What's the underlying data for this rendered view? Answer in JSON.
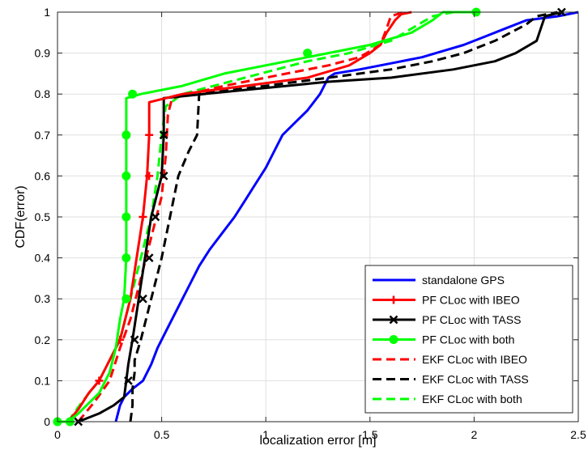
{
  "chart_data": {
    "type": "line",
    "title": "",
    "xlabel": "localization error [m]",
    "ylabel": "CDF(error)",
    "xlim": [
      0,
      2.5
    ],
    "ylim": [
      0,
      1
    ],
    "xticks": [
      "0",
      "0.5",
      "1",
      "1.5",
      "2",
      "2.5"
    ],
    "yticks": [
      "0",
      "0.1",
      "0.2",
      "0.3",
      "0.4",
      "0.5",
      "0.6",
      "0.7",
      "0.8",
      "0.9",
      "1"
    ],
    "grid": true,
    "legend_position": "bottom-right",
    "series": [
      {
        "name": "standalone GPS",
        "color": "#0000ff",
        "dash": "solid",
        "marker": "none",
        "points": [
          [
            0.28,
            0
          ],
          [
            0.29,
            0.02
          ],
          [
            0.3,
            0.04
          ],
          [
            0.32,
            0.06
          ],
          [
            0.36,
            0.08
          ],
          [
            0.41,
            0.1
          ],
          [
            0.45,
            0.14
          ],
          [
            0.48,
            0.18
          ],
          [
            0.52,
            0.22
          ],
          [
            0.56,
            0.26
          ],
          [
            0.6,
            0.3
          ],
          [
            0.64,
            0.34
          ],
          [
            0.68,
            0.38
          ],
          [
            0.73,
            0.42
          ],
          [
            0.79,
            0.46
          ],
          [
            0.85,
            0.5
          ],
          [
            0.9,
            0.54
          ],
          [
            0.95,
            0.58
          ],
          [
            1.0,
            0.62
          ],
          [
            1.04,
            0.66
          ],
          [
            1.08,
            0.7
          ],
          [
            1.14,
            0.73
          ],
          [
            1.2,
            0.76
          ],
          [
            1.26,
            0.8
          ],
          [
            1.3,
            0.84
          ],
          [
            1.33,
            0.85
          ],
          [
            1.45,
            0.86
          ],
          [
            1.6,
            0.875
          ],
          [
            1.75,
            0.89
          ],
          [
            1.85,
            0.905
          ],
          [
            1.95,
            0.92
          ],
          [
            2.05,
            0.94
          ],
          [
            2.15,
            0.96
          ],
          [
            2.25,
            0.98
          ],
          [
            2.4,
            0.99
          ],
          [
            2.5,
            1.0
          ]
        ]
      },
      {
        "name": "PF CLoc with IBEO",
        "color": "#ff0000",
        "dash": "solid",
        "marker": "plus",
        "points": [
          [
            0.05,
            0
          ],
          [
            0.1,
            0.03
          ],
          [
            0.15,
            0.07
          ],
          [
            0.2,
            0.1
          ],
          [
            0.25,
            0.15
          ],
          [
            0.3,
            0.2
          ],
          [
            0.35,
            0.3
          ],
          [
            0.38,
            0.4
          ],
          [
            0.41,
            0.5
          ],
          [
            0.43,
            0.6
          ],
          [
            0.44,
            0.7
          ],
          [
            0.44,
            0.78
          ],
          [
            0.6,
            0.8
          ],
          [
            0.9,
            0.82
          ],
          [
            1.2,
            0.84
          ],
          [
            1.4,
            0.87
          ],
          [
            1.5,
            0.9
          ],
          [
            1.55,
            0.92
          ],
          [
            1.58,
            0.95
          ],
          [
            1.62,
            0.98
          ],
          [
            1.65,
            0.995
          ],
          [
            1.7,
            1.0
          ]
        ],
        "marker_points": [
          [
            0.2,
            0.1
          ],
          [
            0.3,
            0.2
          ],
          [
            0.41,
            0.5
          ],
          [
            0.44,
            0.6
          ],
          [
            0.44,
            0.7
          ]
        ]
      },
      {
        "name": "PF CLoc with TASS",
        "color": "#000000",
        "dash": "solid",
        "marker": "x",
        "points": [
          [
            0.1,
            0
          ],
          [
            0.2,
            0.02
          ],
          [
            0.27,
            0.04
          ],
          [
            0.32,
            0.06
          ],
          [
            0.33,
            0.1
          ],
          [
            0.34,
            0.14
          ],
          [
            0.36,
            0.2
          ],
          [
            0.39,
            0.3
          ],
          [
            0.42,
            0.4
          ],
          [
            0.45,
            0.5
          ],
          [
            0.5,
            0.6
          ],
          [
            0.51,
            0.7
          ],
          [
            0.51,
            0.79
          ],
          [
            0.7,
            0.8
          ],
          [
            1.1,
            0.82
          ],
          [
            1.3,
            0.83
          ],
          [
            1.6,
            0.84
          ],
          [
            1.9,
            0.86
          ],
          [
            2.1,
            0.88
          ],
          [
            2.2,
            0.9
          ],
          [
            2.3,
            0.93
          ],
          [
            2.32,
            0.96
          ],
          [
            2.34,
            0.99
          ],
          [
            2.42,
            1.0
          ]
        ],
        "marker_points": [
          [
            0.1,
            0
          ],
          [
            0.34,
            0.1
          ],
          [
            0.37,
            0.2
          ],
          [
            0.41,
            0.3
          ],
          [
            0.44,
            0.4
          ],
          [
            0.47,
            0.5
          ],
          [
            0.51,
            0.6
          ],
          [
            0.51,
            0.7
          ],
          [
            2.42,
            1.0
          ]
        ]
      },
      {
        "name": "PF CLoc with both",
        "color": "#00ff00",
        "dash": "solid",
        "marker": "circle",
        "points": [
          [
            0,
            0
          ],
          [
            0.05,
            0
          ],
          [
            0.1,
            0.02
          ],
          [
            0.2,
            0.07
          ],
          [
            0.25,
            0.12
          ],
          [
            0.28,
            0.18
          ],
          [
            0.3,
            0.25
          ],
          [
            0.32,
            0.3
          ],
          [
            0.33,
            0.4
          ],
          [
            0.33,
            0.5
          ],
          [
            0.33,
            0.6
          ],
          [
            0.33,
            0.7
          ],
          [
            0.33,
            0.79
          ],
          [
            0.4,
            0.8
          ],
          [
            0.6,
            0.82
          ],
          [
            0.8,
            0.85
          ],
          [
            1.2,
            0.89
          ],
          [
            1.5,
            0.92
          ],
          [
            1.7,
            0.95
          ],
          [
            1.8,
            0.98
          ],
          [
            1.85,
            1.0
          ],
          [
            2.01,
            1.0
          ]
        ],
        "marker_points": [
          [
            0,
            0
          ],
          [
            0.06,
            0
          ],
          [
            0.33,
            0.3
          ],
          [
            0.33,
            0.4
          ],
          [
            0.33,
            0.5
          ],
          [
            0.33,
            0.6
          ],
          [
            0.33,
            0.7
          ],
          [
            0.36,
            0.8
          ],
          [
            1.2,
            0.9
          ],
          [
            2.01,
            1.0
          ]
        ]
      },
      {
        "name": "EKF CLoc with IBEO",
        "color": "#ff0000",
        "dash": "dashed",
        "marker": "none",
        "points": [
          [
            0.1,
            0
          ],
          [
            0.18,
            0.05
          ],
          [
            0.25,
            0.1
          ],
          [
            0.3,
            0.18
          ],
          [
            0.35,
            0.25
          ],
          [
            0.4,
            0.35
          ],
          [
            0.45,
            0.45
          ],
          [
            0.5,
            0.55
          ],
          [
            0.52,
            0.65
          ],
          [
            0.53,
            0.75
          ],
          [
            0.55,
            0.79
          ],
          [
            0.8,
            0.82
          ],
          [
            1.1,
            0.85
          ],
          [
            1.3,
            0.87
          ],
          [
            1.45,
            0.89
          ],
          [
            1.55,
            0.92
          ],
          [
            1.58,
            0.96
          ],
          [
            1.6,
            0.99
          ],
          [
            1.66,
            1.0
          ]
        ]
      },
      {
        "name": "EKF CLoc with TASS",
        "color": "#000000",
        "dash": "dashed",
        "marker": "none",
        "points": [
          [
            0.35,
            0
          ],
          [
            0.36,
            0.04
          ],
          [
            0.36,
            0.08
          ],
          [
            0.37,
            0.12
          ],
          [
            0.37,
            0.15
          ],
          [
            0.4,
            0.2
          ],
          [
            0.45,
            0.3
          ],
          [
            0.5,
            0.4
          ],
          [
            0.54,
            0.5
          ],
          [
            0.58,
            0.6
          ],
          [
            0.63,
            0.66
          ],
          [
            0.67,
            0.7
          ],
          [
            0.68,
            0.8
          ],
          [
            1.0,
            0.82
          ],
          [
            1.3,
            0.84
          ],
          [
            1.6,
            0.86
          ],
          [
            1.8,
            0.88
          ],
          [
            1.95,
            0.9
          ],
          [
            2.1,
            0.93
          ],
          [
            2.25,
            0.97
          ],
          [
            2.3,
            0.99
          ],
          [
            2.4,
            1.0
          ]
        ]
      },
      {
        "name": "EKF CLoc with both",
        "color": "#00ff00",
        "dash": "dashed",
        "marker": "none",
        "points": [
          [
            0.05,
            0
          ],
          [
            0.12,
            0.05
          ],
          [
            0.2,
            0.1
          ],
          [
            0.25,
            0.15
          ],
          [
            0.3,
            0.2
          ],
          [
            0.35,
            0.3
          ],
          [
            0.4,
            0.4
          ],
          [
            0.45,
            0.5
          ],
          [
            0.48,
            0.6
          ],
          [
            0.5,
            0.7
          ],
          [
            0.52,
            0.77
          ],
          [
            0.6,
            0.8
          ],
          [
            0.9,
            0.84
          ],
          [
            1.2,
            0.88
          ],
          [
            1.4,
            0.9
          ],
          [
            1.6,
            0.93
          ],
          [
            1.7,
            0.96
          ],
          [
            1.8,
            0.99
          ],
          [
            1.9,
            1.0
          ]
        ]
      }
    ]
  }
}
